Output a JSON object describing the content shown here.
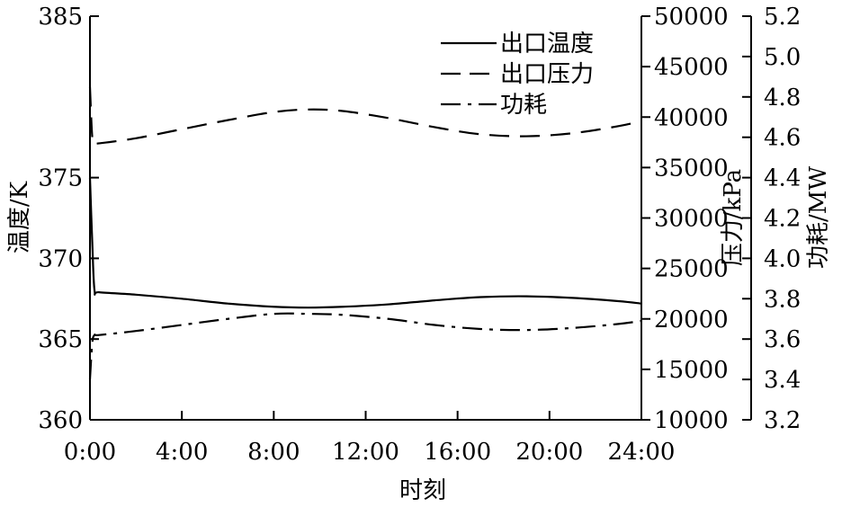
{
  "chart_data": {
    "type": "line",
    "xlabel": "时刻",
    "x_ticks": [
      "0:00",
      "4:00",
      "8:00",
      "12:00",
      "16:00",
      "20:00",
      "24:00"
    ],
    "xlim": [
      0,
      24
    ],
    "axes": {
      "temperature": {
        "label": "温度/K",
        "ylim": [
          360,
          385
        ],
        "ticks": [
          "360",
          "365",
          "370",
          "375",
          "385"
        ]
      },
      "pressure": {
        "label": "压力/kPa",
        "ylim": [
          10000,
          50000
        ],
        "ticks": [
          "10000",
          "15000",
          "20000",
          "25000",
          "30000",
          "35000",
          "40000",
          "45000",
          "50000"
        ]
      },
      "power": {
        "label": "功耗/MW",
        "ylim": [
          3.2,
          5.2
        ],
        "ticks": [
          "3.2",
          "3.4",
          "3.6",
          "3.8",
          "4.0",
          "4.2",
          "4.4",
          "4.6",
          "4.8",
          "5.0",
          "5.2"
        ]
      }
    },
    "series": [
      {
        "name": "出口温度",
        "axis": "temperature",
        "style": "solid",
        "x": [
          0,
          0.1,
          0.2,
          0.4,
          2,
          4,
          6,
          8,
          9.5,
          11,
          13,
          15,
          17,
          19,
          21,
          23,
          24
        ],
        "values": [
          375,
          371,
          368,
          367.9,
          367.75,
          367.5,
          367.2,
          367.0,
          366.95,
          367.0,
          367.15,
          367.4,
          367.6,
          367.65,
          367.55,
          367.35,
          367.2
        ]
      },
      {
        "name": "出口压力",
        "axis": "pressure",
        "style": "dashed",
        "x": [
          0,
          0.1,
          0.2,
          0.4,
          2,
          4,
          6,
          8,
          9.5,
          11,
          13,
          15,
          17,
          19,
          21,
          23,
          24
        ],
        "values": [
          43000,
          38000,
          37400,
          37400,
          37900,
          38800,
          39700,
          40500,
          40750,
          40600,
          39900,
          39000,
          38300,
          38100,
          38400,
          39100,
          39600
        ]
      },
      {
        "name": "功耗",
        "axis": "power",
        "style": "dashdot",
        "x": [
          0,
          0.1,
          0.2,
          0.4,
          2,
          4,
          6,
          8,
          9.5,
          11,
          13,
          15,
          17,
          19,
          21,
          23,
          24
        ],
        "values": [
          3.4,
          3.58,
          3.62,
          3.62,
          3.64,
          3.67,
          3.7,
          3.725,
          3.725,
          3.72,
          3.7,
          3.67,
          3.65,
          3.645,
          3.655,
          3.675,
          3.69
        ]
      }
    ],
    "legend_position": "top-right",
    "grid": false
  }
}
